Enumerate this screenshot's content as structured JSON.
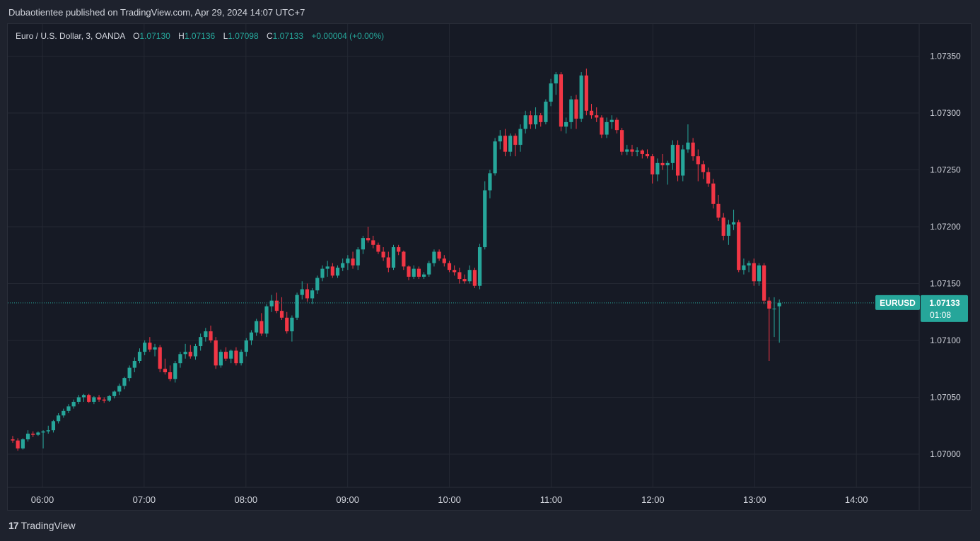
{
  "header": {
    "published_line": "Dubaotientee published on TradingView.com, Apr 29, 2024 14:07 UTC+7"
  },
  "legend": {
    "symbol": "Euro / U.S. Dollar, 3, OANDA",
    "o_label": "O",
    "o_value": "1.07130",
    "h_label": "H",
    "h_value": "1.07136",
    "l_label": "L",
    "l_value": "1.07098",
    "c_label": "C",
    "c_value": "1.07133",
    "change": "+0.00004 (+0.00%)"
  },
  "price_tag": {
    "symbol": "EURUSD",
    "price": "1.07133",
    "countdown": "01:08"
  },
  "footer": {
    "brand": "TradingView"
  },
  "colors": {
    "up": "#26a69a",
    "down": "#f23645",
    "background": "#161a25",
    "grid": "#242833"
  },
  "chart_data": {
    "type": "candlestick",
    "y_ticks": [
      1.07,
      1.0705,
      1.071,
      1.0715,
      1.072,
      1.0725,
      1.073,
      1.0735
    ],
    "y_tick_labels": [
      "1.07000",
      "1.07050",
      "1.07100",
      "1.07150",
      "1.07200",
      "1.07250",
      "1.07300",
      "1.07350"
    ],
    "ylim": [
      1.0697,
      1.0738
    ],
    "x_ticks": [
      "06:00",
      "07:00",
      "08:00",
      "09:00",
      "10:00",
      "11:00",
      "12:00",
      "13:00",
      "14:00"
    ],
    "current_price": 1.07133,
    "candles": [
      [
        1.07013,
        1.07016,
        1.0701,
        1.07012
      ],
      [
        1.07012,
        1.07014,
        1.07003,
        1.07005
      ],
      [
        1.07005,
        1.07014,
        1.07004,
        1.07013
      ],
      [
        1.07013,
        1.07021,
        1.07011,
        1.07018
      ],
      [
        1.07018,
        1.0702,
        1.07015,
        1.07017
      ],
      [
        1.07017,
        1.0702,
        1.07016,
        1.07019
      ],
      [
        1.07019,
        1.07021,
        1.07005,
        1.0702
      ],
      [
        1.0702,
        1.07025,
        1.07018,
        1.07021
      ],
      [
        1.07021,
        1.0703,
        1.07019,
        1.07029
      ],
      [
        1.07029,
        1.07036,
        1.07027,
        1.07034
      ],
      [
        1.07034,
        1.0704,
        1.07032,
        1.07038
      ],
      [
        1.07038,
        1.07044,
        1.07036,
        1.07042
      ],
      [
        1.07042,
        1.07048,
        1.0704,
        1.07046
      ],
      [
        1.07046,
        1.07052,
        1.07044,
        1.0705
      ],
      [
        1.0705,
        1.07053,
        1.07046,
        1.07052
      ],
      [
        1.07052,
        1.07053,
        1.07045,
        1.07046
      ],
      [
        1.07046,
        1.07051,
        1.07044,
        1.0705
      ],
      [
        1.0705,
        1.07052,
        1.07046,
        1.07048
      ],
      [
        1.07048,
        1.0705,
        1.07045,
        1.07047
      ],
      [
        1.07047,
        1.07052,
        1.07046,
        1.07051
      ],
      [
        1.07051,
        1.07056,
        1.07049,
        1.07055
      ],
      [
        1.07055,
        1.07062,
        1.07052,
        1.0706
      ],
      [
        1.0706,
        1.07068,
        1.07057,
        1.07067
      ],
      [
        1.07067,
        1.07078,
        1.07064,
        1.07076
      ],
      [
        1.07076,
        1.07085,
        1.07072,
        1.07082
      ],
      [
        1.07082,
        1.07093,
        1.0708,
        1.0709
      ],
      [
        1.0709,
        1.071,
        1.07087,
        1.07098
      ],
      [
        1.07098,
        1.07103,
        1.0709,
        1.07092
      ],
      [
        1.07092,
        1.07097,
        1.07086,
        1.07094
      ],
      [
        1.07094,
        1.07096,
        1.07072,
        1.07075
      ],
      [
        1.07075,
        1.07084,
        1.0707,
        1.07072
      ],
      [
        1.07072,
        1.07078,
        1.07064,
        1.07066
      ],
      [
        1.07066,
        1.07082,
        1.07063,
        1.0708
      ],
      [
        1.0708,
        1.0709,
        1.07076,
        1.07088
      ],
      [
        1.07088,
        1.07097,
        1.07084,
        1.0709
      ],
      [
        1.0709,
        1.07096,
        1.07084,
        1.07086
      ],
      [
        1.07086,
        1.07097,
        1.07083,
        1.07095
      ],
      [
        1.07095,
        1.07106,
        1.07091,
        1.07103
      ],
      [
        1.07103,
        1.07111,
        1.07099,
        1.07108
      ],
      [
        1.07108,
        1.07113,
        1.07098,
        1.071
      ],
      [
        1.071,
        1.07103,
        1.07075,
        1.07078
      ],
      [
        1.07078,
        1.07092,
        1.07076,
        1.0709
      ],
      [
        1.0709,
        1.07094,
        1.07082,
        1.07084
      ],
      [
        1.07084,
        1.07092,
        1.0708,
        1.07091
      ],
      [
        1.07091,
        1.07094,
        1.07078,
        1.0708
      ],
      [
        1.0708,
        1.07092,
        1.07078,
        1.0709
      ],
      [
        1.0709,
        1.07102,
        1.07086,
        1.071
      ],
      [
        1.071,
        1.07109,
        1.07096,
        1.07107
      ],
      [
        1.07107,
        1.07119,
        1.07104,
        1.07117
      ],
      [
        1.07117,
        1.07124,
        1.07104,
        1.07106
      ],
      [
        1.07106,
        1.07132,
        1.07103,
        1.0713
      ],
      [
        1.0713,
        1.0714,
        1.07125,
        1.07135
      ],
      [
        1.07135,
        1.07142,
        1.07124,
        1.07126
      ],
      [
        1.07126,
        1.07138,
        1.07118,
        1.0712
      ],
      [
        1.0712,
        1.07125,
        1.07106,
        1.07108
      ],
      [
        1.07108,
        1.07122,
        1.07099,
        1.0712
      ],
      [
        1.0712,
        1.07142,
        1.07118,
        1.0714
      ],
      [
        1.0714,
        1.07152,
        1.07136,
        1.07145
      ],
      [
        1.07145,
        1.0715,
        1.07134,
        1.07137
      ],
      [
        1.07137,
        1.07146,
        1.07132,
        1.07144
      ],
      [
        1.07144,
        1.07157,
        1.07141,
        1.07155
      ],
      [
        1.07155,
        1.07166,
        1.07152,
        1.07163
      ],
      [
        1.07163,
        1.0717,
        1.07156,
        1.07165
      ],
      [
        1.07165,
        1.07168,
        1.07155,
        1.07157
      ],
      [
        1.07157,
        1.07166,
        1.07155,
        1.07164
      ],
      [
        1.07164,
        1.07172,
        1.07161,
        1.07168
      ],
      [
        1.07168,
        1.07175,
        1.07162,
        1.07172
      ],
      [
        1.07172,
        1.07178,
        1.07163,
        1.07166
      ],
      [
        1.07166,
        1.07182,
        1.07162,
        1.0718
      ],
      [
        1.0718,
        1.07192,
        1.07176,
        1.0719
      ],
      [
        1.0719,
        1.072,
        1.07186,
        1.07188
      ],
      [
        1.07188,
        1.07192,
        1.07181,
        1.07184
      ],
      [
        1.07184,
        1.07186,
        1.07176,
        1.07178
      ],
      [
        1.07178,
        1.07182,
        1.0717,
        1.07173
      ],
      [
        1.07173,
        1.07178,
        1.0716,
        1.07164
      ],
      [
        1.07164,
        1.07184,
        1.07162,
        1.07182
      ],
      [
        1.07182,
        1.07184,
        1.07175,
        1.07178
      ],
      [
        1.07178,
        1.07179,
        1.07162,
        1.07165
      ],
      [
        1.07165,
        1.07166,
        1.07153,
        1.07156
      ],
      [
        1.07156,
        1.07166,
        1.07154,
        1.07163
      ],
      [
        1.07163,
        1.07165,
        1.07154,
        1.07156
      ],
      [
        1.07156,
        1.0716,
        1.07154,
        1.07158
      ],
      [
        1.07158,
        1.0717,
        1.07156,
        1.07168
      ],
      [
        1.07168,
        1.0718,
        1.07165,
        1.07178
      ],
      [
        1.07178,
        1.0718,
        1.0717,
        1.07172
      ],
      [
        1.07172,
        1.07175,
        1.07165,
        1.07168
      ],
      [
        1.07168,
        1.0717,
        1.0716,
        1.07162
      ],
      [
        1.07162,
        1.07166,
        1.07157,
        1.0716
      ],
      [
        1.0716,
        1.07164,
        1.0715,
        1.07154
      ],
      [
        1.07154,
        1.07158,
        1.0715,
        1.07152
      ],
      [
        1.07152,
        1.07166,
        1.0715,
        1.07162
      ],
      [
        1.07162,
        1.07164,
        1.07146,
        1.07148
      ],
      [
        1.07148,
        1.07185,
        1.07145,
        1.07182
      ],
      [
        1.07182,
        1.0724,
        1.0718,
        1.07232
      ],
      [
        1.07232,
        1.0725,
        1.07225,
        1.07247
      ],
      [
        1.07247,
        1.07278,
        1.07245,
        1.07275
      ],
      [
        1.07275,
        1.07285,
        1.07268,
        1.0728
      ],
      [
        1.0728,
        1.07286,
        1.07262,
        1.07266
      ],
      [
        1.07266,
        1.07282,
        1.07262,
        1.0728
      ],
      [
        1.0728,
        1.07282,
        1.07262,
        1.07272
      ],
      [
        1.07272,
        1.0729,
        1.07266,
        1.07286
      ],
      [
        1.07286,
        1.07302,
        1.07282,
        1.07298
      ],
      [
        1.07298,
        1.07302,
        1.07286,
        1.0729
      ],
      [
        1.0729,
        1.07305,
        1.07286,
        1.07298
      ],
      [
        1.07298,
        1.073,
        1.07288,
        1.07292
      ],
      [
        1.07292,
        1.07312,
        1.0729,
        1.0731
      ],
      [
        1.0731,
        1.0733,
        1.07306,
        1.07326
      ],
      [
        1.07326,
        1.07336,
        1.07316,
        1.07334
      ],
      [
        1.07334,
        1.07336,
        1.07284,
        1.07288
      ],
      [
        1.07288,
        1.07296,
        1.07282,
        1.07292
      ],
      [
        1.07292,
        1.07315,
        1.07286,
        1.07312
      ],
      [
        1.07312,
        1.07316,
        1.07286,
        1.07295
      ],
      [
        1.07295,
        1.07336,
        1.07292,
        1.07333
      ],
      [
        1.07333,
        1.07339,
        1.07298,
        1.07302
      ],
      [
        1.07302,
        1.07308,
        1.07295,
        1.07298
      ],
      [
        1.07298,
        1.07305,
        1.07292,
        1.07296
      ],
      [
        1.07296,
        1.07298,
        1.07278,
        1.07281
      ],
      [
        1.07281,
        1.07296,
        1.07278,
        1.07292
      ],
      [
        1.07292,
        1.07298,
        1.07286,
        1.07294
      ],
      [
        1.07294,
        1.07296,
        1.07282,
        1.07285
      ],
      [
        1.07285,
        1.07287,
        1.07263,
        1.07266
      ],
      [
        1.07266,
        1.07272,
        1.07263,
        1.07268
      ],
      [
        1.07268,
        1.07272,
        1.07262,
        1.07266
      ],
      [
        1.07266,
        1.0727,
        1.07262,
        1.07267
      ],
      [
        1.07267,
        1.07268,
        1.0726,
        1.07264
      ],
      [
        1.07264,
        1.07268,
        1.0726,
        1.07262
      ],
      [
        1.07262,
        1.07264,
        1.07238,
        1.07246
      ],
      [
        1.07246,
        1.0726,
        1.0724,
        1.07256
      ],
      [
        1.07256,
        1.07264,
        1.0725,
        1.07254
      ],
      [
        1.07254,
        1.07258,
        1.07237,
        1.07256
      ],
      [
        1.07256,
        1.07276,
        1.0725,
        1.07272
      ],
      [
        1.07272,
        1.07276,
        1.0724,
        1.07245
      ],
      [
        1.07245,
        1.07272,
        1.0724,
        1.07268
      ],
      [
        1.07268,
        1.0729,
        1.07265,
        1.07274
      ],
      [
        1.07274,
        1.07278,
        1.07258,
        1.07262
      ],
      [
        1.07262,
        1.07268,
        1.0724,
        1.07255
      ],
      [
        1.07255,
        1.07258,
        1.07242,
        1.07248
      ],
      [
        1.07248,
        1.07252,
        1.07235,
        1.07238
      ],
      [
        1.07238,
        1.07242,
        1.07216,
        1.0722
      ],
      [
        1.0722,
        1.07228,
        1.07205,
        1.07208
      ],
      [
        1.07208,
        1.07212,
        1.07188,
        1.07192
      ],
      [
        1.07192,
        1.07206,
        1.07184,
        1.07202
      ],
      [
        1.07202,
        1.07215,
        1.07197,
        1.07204
      ],
      [
        1.07204,
        1.07206,
        1.0716,
        1.07162
      ],
      [
        1.07162,
        1.07172,
        1.07158,
        1.07166
      ],
      [
        1.07166,
        1.0717,
        1.0716,
        1.07168
      ],
      [
        1.07168,
        1.07172,
        1.07148,
        1.07152
      ],
      [
        1.07152,
        1.07168,
        1.07148,
        1.07166
      ],
      [
        1.07166,
        1.07168,
        1.07132,
        1.07135
      ],
      [
        1.07135,
        1.07138,
        1.07082,
        1.07128
      ],
      [
        1.07128,
        1.07138,
        1.07103,
        1.07128
      ],
      [
        1.0713,
        1.07136,
        1.07098,
        1.07133
      ]
    ]
  }
}
